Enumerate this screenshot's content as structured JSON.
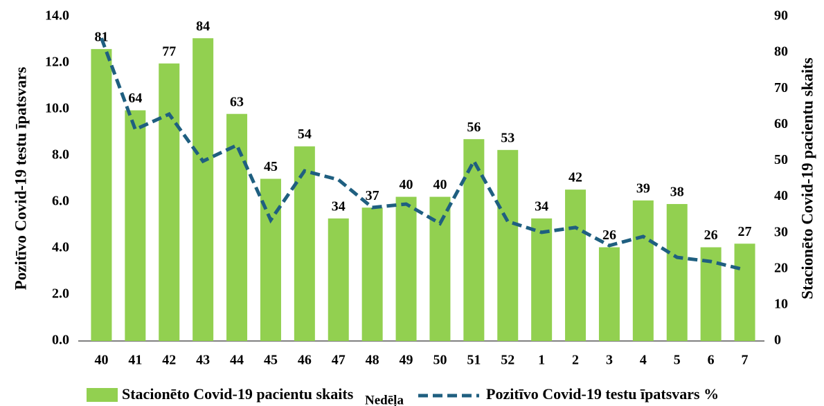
{
  "chart_data": {
    "type": "bar",
    "x_label": "Nedēļa",
    "y_label": "Pozitīvo Covid-19 testu īpatsvars",
    "y2_label": "Stacionēto Covid-19 pacientu skaits",
    "categories": [
      "40",
      "41",
      "42",
      "43",
      "44",
      "45",
      "46",
      "47",
      "48",
      "49",
      "50",
      "51",
      "52",
      "1",
      "2",
      "3",
      "4",
      "5",
      "6",
      "7"
    ],
    "series": [
      {
        "name": "Stacionēto Covid-19 pacientu skaits",
        "type": "bar",
        "axis": "y2",
        "color": "#92d050",
        "values": [
          81,
          64,
          77,
          84,
          63,
          45,
          54,
          34,
          37,
          40,
          40,
          56,
          53,
          34,
          42,
          26,
          39,
          38,
          26,
          27
        ]
      },
      {
        "name": "Pozitīvo Covid-19 testu īpatsvars %",
        "type": "line",
        "axis": "y",
        "color": "#1f5f80",
        "values": [
          13.07,
          9.13,
          9.79,
          7.76,
          8.45,
          5.22,
          7.34,
          6.96,
          5.76,
          5.91,
          5.07,
          7.76,
          5.16,
          4.69,
          4.9,
          4.12,
          4.51,
          3.61,
          3.43,
          3.07
        ]
      }
    ],
    "ylim": [
      0,
      14
    ],
    "yticks": [
      {
        "value": 0,
        "label": "0.0"
      },
      {
        "value": 2,
        "label": "2.0"
      },
      {
        "value": 4,
        "label": "4.0"
      },
      {
        "value": 6,
        "label": "6.0"
      },
      {
        "value": 8,
        "label": "8.0"
      },
      {
        "value": 10,
        "label": "10.0"
      },
      {
        "value": 12,
        "label": "12.0"
      },
      {
        "value": 14,
        "label": "14.0"
      }
    ],
    "y2lim": [
      0,
      90
    ],
    "y2ticks": [
      0,
      10,
      20,
      30,
      40,
      50,
      60,
      70,
      80,
      90
    ]
  }
}
